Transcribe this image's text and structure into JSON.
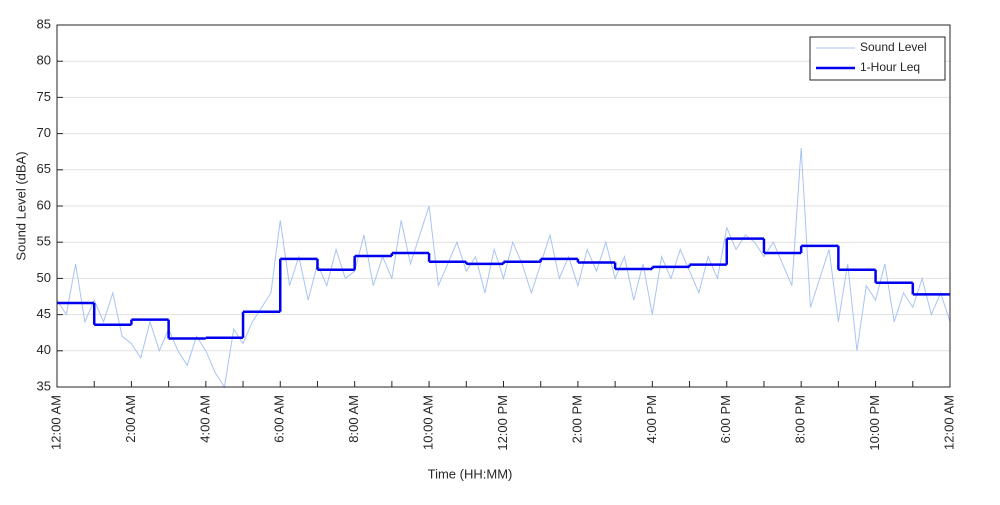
{
  "chart_data": {
    "type": "line",
    "y_label": "Sound Level (dBA)",
    "x_label": "Time (HH:MM)",
    "xlim": [
      0,
      24
    ],
    "xticks": [
      {
        "value": 0,
        "label": "12:00 AM"
      },
      {
        "value": 2,
        "label": "2:00 AM"
      },
      {
        "value": 4,
        "label": "4:00 AM"
      },
      {
        "value": 6,
        "label": "6:00 AM"
      },
      {
        "value": 8,
        "label": "8:00 AM"
      },
      {
        "value": 10,
        "label": "10:00 AM"
      },
      {
        "value": 12,
        "label": "12:00 PM"
      },
      {
        "value": 14,
        "label": "2:00 PM"
      },
      {
        "value": 16,
        "label": "4:00 PM"
      },
      {
        "value": 18,
        "label": "6:00 PM"
      },
      {
        "value": 20,
        "label": "8:00 PM"
      },
      {
        "value": 22,
        "label": "10:00 PM"
      },
      {
        "value": 24,
        "label": "12:00 AM"
      }
    ],
    "xminorticks": [
      1,
      3,
      5,
      7,
      9,
      11,
      13,
      15,
      17,
      19,
      21,
      23
    ],
    "ylim": [
      35,
      85
    ],
    "yticks": [
      35,
      40,
      45,
      50,
      55,
      60,
      65,
      70,
      75,
      80,
      85
    ],
    "grid": true,
    "legend": "upper right",
    "series": [
      {
        "name": "Sound Level",
        "color": "#a8c4f5",
        "style": "line",
        "x": [
          0,
          0.25,
          0.5,
          0.75,
          1,
          1.25,
          1.5,
          1.75,
          2,
          2.25,
          2.5,
          2.75,
          3,
          3.25,
          3.5,
          3.75,
          4,
          4.25,
          4.5,
          4.75,
          5,
          5.25,
          5.5,
          5.75,
          6,
          6.25,
          6.5,
          6.75,
          7,
          7.25,
          7.5,
          7.75,
          8,
          8.25,
          8.5,
          8.75,
          9,
          9.25,
          9.5,
          9.75,
          10,
          10.25,
          10.5,
          10.75,
          11,
          11.25,
          11.5,
          11.75,
          12,
          12.25,
          12.5,
          12.75,
          13,
          13.25,
          13.5,
          13.75,
          14,
          14.25,
          14.5,
          14.75,
          15,
          15.25,
          15.5,
          15.75,
          16,
          16.25,
          16.5,
          16.75,
          17,
          17.25,
          17.5,
          17.75,
          18,
          18.25,
          18.5,
          18.75,
          19,
          19.25,
          19.5,
          19.75,
          20,
          20.25,
          20.5,
          20.75,
          21,
          21.25,
          21.5,
          21.75,
          22,
          22.25,
          22.5,
          22.75,
          23,
          23.25,
          23.5,
          23.75,
          24
        ],
        "values": [
          47,
          45,
          52,
          44,
          47,
          44,
          48,
          42,
          41,
          39,
          44,
          40,
          43,
          40,
          38,
          42,
          40,
          37,
          35,
          43,
          41,
          44,
          46,
          48,
          58,
          49,
          53,
          47,
          52,
          49,
          54,
          50,
          51,
          56,
          49,
          53,
          50,
          58,
          52,
          56,
          60,
          49,
          52,
          55,
          51,
          53,
          48,
          54,
          50,
          55,
          52,
          48,
          52,
          56,
          50,
          53,
          49,
          54,
          51,
          55,
          50,
          53,
          47,
          52,
          45,
          53,
          50,
          54,
          51,
          48,
          53,
          50,
          57,
          54,
          56,
          55,
          53,
          55,
          52,
          49,
          68,
          46,
          50,
          54,
          44,
          52,
          40,
          49,
          47,
          52,
          44,
          48,
          46,
          50,
          45,
          48,
          44
        ]
      },
      {
        "name": "1-Hour Leq",
        "color": "#0000ee",
        "style": "step",
        "x": [
          0,
          1,
          2,
          3,
          4,
          5,
          6,
          7,
          8,
          9,
          10,
          11,
          12,
          13,
          14,
          15,
          16,
          17,
          18,
          19,
          20,
          21,
          22,
          23
        ],
        "values": [
          46.6,
          43.6,
          44.3,
          41.7,
          41.8,
          45.4,
          52.7,
          51.2,
          53.1,
          53.5,
          52.3,
          52.0,
          52.3,
          52.7,
          52.2,
          51.3,
          51.6,
          51.9,
          55.5,
          53.5,
          54.5,
          51.2,
          49.4,
          47.8
        ]
      }
    ]
  }
}
